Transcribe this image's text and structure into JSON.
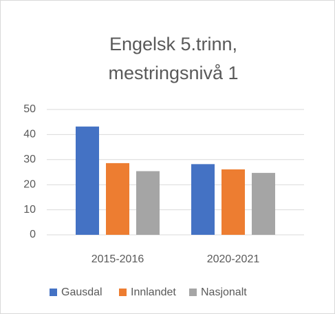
{
  "chart_data": {
    "type": "bar",
    "title": [
      "Engelsk 5.trinn,",
      "mestringsnivå 1"
    ],
    "categories": [
      "2015-2016",
      "2020-2021"
    ],
    "series": [
      {
        "name": "Gausdal",
        "color": "#4472c4",
        "values": [
          43.2,
          28.2
        ]
      },
      {
        "name": "Innlandet",
        "color": "#ed7d31",
        "values": [
          28.6,
          26.1
        ]
      },
      {
        "name": "Nasjonalt",
        "color": "#a5a5a5",
        "values": [
          25.4,
          24.7
        ]
      }
    ],
    "ylim": [
      0,
      50
    ],
    "yticks": [
      0,
      10,
      20,
      30,
      40,
      50
    ],
    "grid": true,
    "legend": "bottom"
  }
}
